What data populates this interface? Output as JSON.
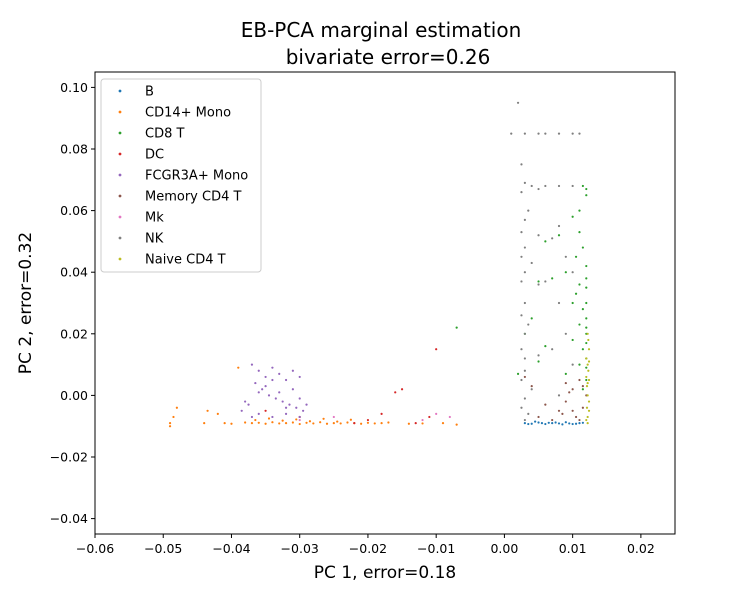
{
  "chart_data": {
    "type": "scatter",
    "title": "EB-PCA marginal estimation",
    "subtitle": "bivariate error=0.26",
    "xlabel": "PC 1, error=0.18",
    "ylabel": "PC 2, error=0.32",
    "xlim": [
      -0.06,
      0.025
    ],
    "ylim": [
      -0.045,
      0.105
    ],
    "x_ticks": [
      -0.06,
      -0.05,
      -0.04,
      -0.03,
      -0.02,
      -0.01,
      0.0,
      0.01,
      0.02
    ],
    "x_tick_labels": [
      "−0.06",
      "−0.05",
      "−0.04",
      "−0.03",
      "−0.02",
      "−0.01",
      "0.00",
      "0.01",
      "0.02"
    ],
    "y_ticks": [
      -0.04,
      -0.02,
      0.0,
      0.02,
      0.04,
      0.06,
      0.08,
      0.1
    ],
    "y_tick_labels": [
      "−0.04",
      "−0.02",
      "0.00",
      "0.02",
      "0.04",
      "0.06",
      "0.08",
      "0.10"
    ],
    "grid": false,
    "legend_position": "top-left",
    "series": [
      {
        "name": "B",
        "color": "#1f77b4",
        "points": [
          [
            0.003,
            -0.009
          ],
          [
            0.004,
            -0.0092
          ],
          [
            0.005,
            -0.0088
          ],
          [
            0.006,
            -0.0093
          ],
          [
            0.007,
            -0.009
          ],
          [
            0.008,
            -0.0091
          ],
          [
            0.009,
            -0.0087
          ],
          [
            0.01,
            -0.0093
          ],
          [
            0.011,
            -0.009
          ],
          [
            0.0045,
            -0.0085
          ],
          [
            0.0065,
            -0.0089
          ],
          [
            0.0085,
            -0.0094
          ],
          [
            0.0095,
            -0.0091
          ],
          [
            0.0035,
            -0.0093
          ],
          [
            0.0055,
            -0.009
          ],
          [
            0.0075,
            -0.0088
          ],
          [
            0.0105,
            -0.0092
          ],
          [
            0.0115,
            -0.0089
          ]
        ]
      },
      {
        "name": "CD14+ Mono",
        "color": "#ff7f0e",
        "points": [
          [
            -0.049,
            -0.009
          ],
          [
            -0.0485,
            -0.007
          ],
          [
            -0.048,
            -0.004
          ],
          [
            -0.049,
            -0.01
          ],
          [
            -0.044,
            -0.009
          ],
          [
            -0.0435,
            -0.005
          ],
          [
            -0.042,
            -0.006
          ],
          [
            -0.041,
            -0.009
          ],
          [
            -0.04,
            -0.0092
          ],
          [
            -0.039,
            0.009
          ],
          [
            -0.038,
            -0.0088
          ],
          [
            -0.037,
            -0.009
          ],
          [
            -0.036,
            -0.0089
          ],
          [
            -0.035,
            -0.0092
          ],
          [
            -0.034,
            -0.0087
          ],
          [
            -0.033,
            -0.0091
          ],
          [
            -0.032,
            -0.009
          ],
          [
            -0.031,
            -0.0088
          ],
          [
            -0.03,
            -0.0093
          ],
          [
            -0.029,
            -0.0089
          ],
          [
            -0.028,
            -0.0091
          ],
          [
            -0.027,
            -0.0087
          ],
          [
            -0.026,
            -0.0092
          ],
          [
            -0.025,
            -0.009
          ],
          [
            -0.024,
            -0.0091
          ],
          [
            -0.023,
            -0.0088
          ],
          [
            -0.022,
            -0.009
          ],
          [
            -0.021,
            -0.0092
          ],
          [
            -0.02,
            -0.0089
          ],
          [
            -0.019,
            -0.0091
          ],
          [
            -0.018,
            -0.009
          ],
          [
            -0.017,
            -0.0088
          ],
          [
            -0.014,
            -0.0092
          ],
          [
            -0.012,
            -0.0091
          ],
          [
            -0.009,
            -0.009
          ],
          [
            -0.007,
            -0.0095
          ],
          [
            -0.0365,
            -0.008
          ],
          [
            -0.0345,
            -0.0075
          ],
          [
            -0.0325,
            -0.0082
          ],
          [
            -0.0305,
            -0.0078
          ],
          [
            -0.0285,
            -0.0084
          ],
          [
            -0.0265,
            -0.0076
          ],
          [
            -0.0245,
            -0.0085
          ],
          [
            -0.0225,
            -0.0079
          ]
        ]
      },
      {
        "name": "CD8 T",
        "color": "#2ca02c",
        "points": [
          [
            0.0115,
            0.068
          ],
          [
            0.012,
            0.067
          ],
          [
            0.01,
            0.058
          ],
          [
            0.011,
            0.053
          ],
          [
            0.008,
            0.052
          ],
          [
            0.0115,
            0.048
          ],
          [
            0.0105,
            0.045
          ],
          [
            0.012,
            0.042
          ],
          [
            0.009,
            0.04
          ],
          [
            0.007,
            0.038
          ],
          [
            0.011,
            0.036
          ],
          [
            0.012,
            0.035
          ],
          [
            0.01,
            0.03
          ],
          [
            0.0115,
            0.028
          ],
          [
            0.012,
            0.025
          ],
          [
            0.011,
            0.023
          ],
          [
            0.012,
            0.02
          ],
          [
            0.01,
            0.018
          ],
          [
            0.0115,
            0.015
          ],
          [
            0.012,
            0.012
          ],
          [
            0.011,
            0.01
          ],
          [
            0.009,
            0.007
          ],
          [
            0.012,
            0.005
          ],
          [
            0.0115,
            0.002
          ],
          [
            0.006,
            0.05
          ],
          [
            0.005,
            0.037
          ],
          [
            0.004,
            0.025
          ],
          [
            0.003,
            0.02
          ],
          [
            0.006,
            0.016
          ],
          [
            0.005,
            0.011
          ],
          [
            0.002,
            0.007
          ],
          [
            -0.007,
            0.022
          ],
          [
            0.012,
            0.065
          ],
          [
            0.011,
            0.06
          ],
          [
            0.012,
            0.038
          ],
          [
            0.012,
            0.03
          ],
          [
            0.012,
            0.022
          ],
          [
            0.012,
            0.017
          ],
          [
            0.012,
            0.009
          ],
          [
            0.0105,
            0.033
          ]
        ]
      },
      {
        "name": "DC",
        "color": "#d62728",
        "points": [
          [
            -0.01,
            0.015
          ],
          [
            -0.016,
            0.001
          ],
          [
            -0.015,
            0.002
          ],
          [
            -0.02,
            -0.008
          ],
          [
            -0.018,
            -0.006
          ],
          [
            -0.022,
            -0.009
          ],
          [
            -0.03,
            -0.007
          ],
          [
            -0.035,
            -0.005
          ],
          [
            -0.013,
            -0.009
          ],
          [
            -0.011,
            -0.007
          ]
        ]
      },
      {
        "name": "FCGR3A+ Mono",
        "color": "#9467bd",
        "points": [
          [
            -0.037,
            0.01
          ],
          [
            -0.036,
            0.008
          ],
          [
            -0.035,
            0.006
          ],
          [
            -0.034,
            0.009
          ],
          [
            -0.033,
            0.007
          ],
          [
            -0.032,
            0.005
          ],
          [
            -0.031,
            0.008
          ],
          [
            -0.03,
            0.006
          ],
          [
            -0.0365,
            0.004
          ],
          [
            -0.0355,
            0.002
          ],
          [
            -0.0345,
            0.0
          ],
          [
            -0.0335,
            -0.001
          ],
          [
            -0.0325,
            -0.002
          ],
          [
            -0.0315,
            -0.003
          ],
          [
            -0.0305,
            -0.004
          ],
          [
            -0.0295,
            -0.005
          ],
          [
            -0.0375,
            -0.003
          ],
          [
            -0.0385,
            -0.005
          ],
          [
            -0.036,
            -0.006
          ],
          [
            -0.034,
            -0.007
          ],
          [
            -0.032,
            -0.006
          ],
          [
            -0.03,
            -0.007
          ],
          [
            -0.038,
            -0.002
          ],
          [
            -0.035,
            0.003
          ],
          [
            -0.033,
            0.001
          ],
          [
            -0.031,
            0.002
          ],
          [
            -0.029,
            -0.003
          ],
          [
            -0.034,
            0.005
          ],
          [
            -0.036,
            0.001
          ],
          [
            -0.032,
            -0.004
          ],
          [
            -0.03,
            -0.001
          ],
          [
            -0.037,
            -0.007
          ]
        ]
      },
      {
        "name": "Memory CD4 T",
        "color": "#8c564b",
        "points": [
          [
            0.011,
            0.005
          ],
          [
            0.01,
            0.002
          ],
          [
            0.009,
            -0.002
          ],
          [
            0.008,
            -0.005
          ],
          [
            0.0105,
            -0.007
          ],
          [
            0.0115,
            -0.004
          ],
          [
            0.0095,
            0.001
          ],
          [
            0.0085,
            -0.006
          ],
          [
            0.006,
            -0.003
          ],
          [
            0.005,
            -0.007
          ],
          [
            0.004,
            0.003
          ],
          [
            0.003,
            0.006
          ],
          [
            0.011,
            -0.008
          ],
          [
            0.012,
            0.0
          ],
          [
            0.007,
            -0.008
          ],
          [
            0.01,
            -0.005
          ],
          [
            0.0115,
            0.003
          ],
          [
            0.009,
            0.004
          ]
        ]
      },
      {
        "name": "Mk",
        "color": "#e377c2",
        "points": [
          [
            -0.01,
            -0.006
          ],
          [
            -0.008,
            -0.007
          ],
          [
            -0.012,
            -0.008
          ],
          [
            -0.025,
            -0.007
          ],
          [
            -0.03,
            -0.008
          ]
        ]
      },
      {
        "name": "NK",
        "color": "#7f7f7f",
        "points": [
          [
            0.002,
            0.095
          ],
          [
            0.001,
            0.085
          ],
          [
            0.003,
            0.085
          ],
          [
            0.005,
            0.085
          ],
          [
            0.006,
            0.085
          ],
          [
            0.008,
            0.085
          ],
          [
            0.01,
            0.085
          ],
          [
            0.011,
            0.085
          ],
          [
            0.0025,
            0.075
          ],
          [
            0.003,
            0.069
          ],
          [
            0.004,
            0.068
          ],
          [
            0.0025,
            0.066
          ],
          [
            0.005,
            0.067
          ],
          [
            0.006,
            0.068
          ],
          [
            0.008,
            0.068
          ],
          [
            0.01,
            0.068
          ],
          [
            0.0035,
            0.06
          ],
          [
            0.003,
            0.057
          ],
          [
            0.0025,
            0.053
          ],
          [
            0.005,
            0.052
          ],
          [
            0.007,
            0.051
          ],
          [
            0.003,
            0.048
          ],
          [
            0.0025,
            0.045
          ],
          [
            0.004,
            0.043
          ],
          [
            0.003,
            0.04
          ],
          [
            0.0025,
            0.037
          ],
          [
            0.005,
            0.036
          ],
          [
            0.006,
            0.037
          ],
          [
            0.003,
            0.03
          ],
          [
            0.0025,
            0.026
          ],
          [
            0.0035,
            0.023
          ],
          [
            0.003,
            0.02
          ],
          [
            0.0025,
            0.015
          ],
          [
            0.003,
            0.012
          ],
          [
            0.005,
            0.013
          ],
          [
            0.003,
            0.008
          ],
          [
            0.0025,
            0.005
          ],
          [
            0.004,
            0.002
          ],
          [
            0.003,
            -0.001
          ],
          [
            0.0025,
            -0.004
          ],
          [
            0.0035,
            -0.006
          ],
          [
            0.003,
            -0.008
          ],
          [
            0.008,
            0.055
          ],
          [
            0.009,
            0.045
          ],
          [
            0.01,
            0.04
          ],
          [
            0.008,
            0.03
          ],
          [
            0.009,
            0.02
          ],
          [
            0.01,
            0.01
          ],
          [
            0.008,
            0.0
          ],
          [
            0.007,
            0.015
          ]
        ]
      },
      {
        "name": "Naive CD4 T",
        "color": "#bcbd22",
        "points": [
          [
            0.0122,
            0.02
          ],
          [
            0.0124,
            0.015
          ],
          [
            0.0122,
            0.01
          ],
          [
            0.0124,
            0.005
          ],
          [
            0.0122,
            0.0
          ],
          [
            0.0124,
            -0.005
          ],
          [
            0.0122,
            -0.009
          ],
          [
            0.012,
            0.012
          ],
          [
            0.0123,
            0.008
          ],
          [
            0.0121,
            0.003
          ],
          [
            0.0124,
            -0.002
          ],
          [
            0.0122,
            -0.007
          ],
          [
            0.012,
            0.006
          ],
          [
            0.0123,
            0.018
          ],
          [
            0.0121,
            -0.004
          ],
          [
            0.0124,
            0.011
          ],
          [
            0.0122,
            0.004
          ],
          [
            0.012,
            -0.008
          ]
        ]
      }
    ]
  }
}
